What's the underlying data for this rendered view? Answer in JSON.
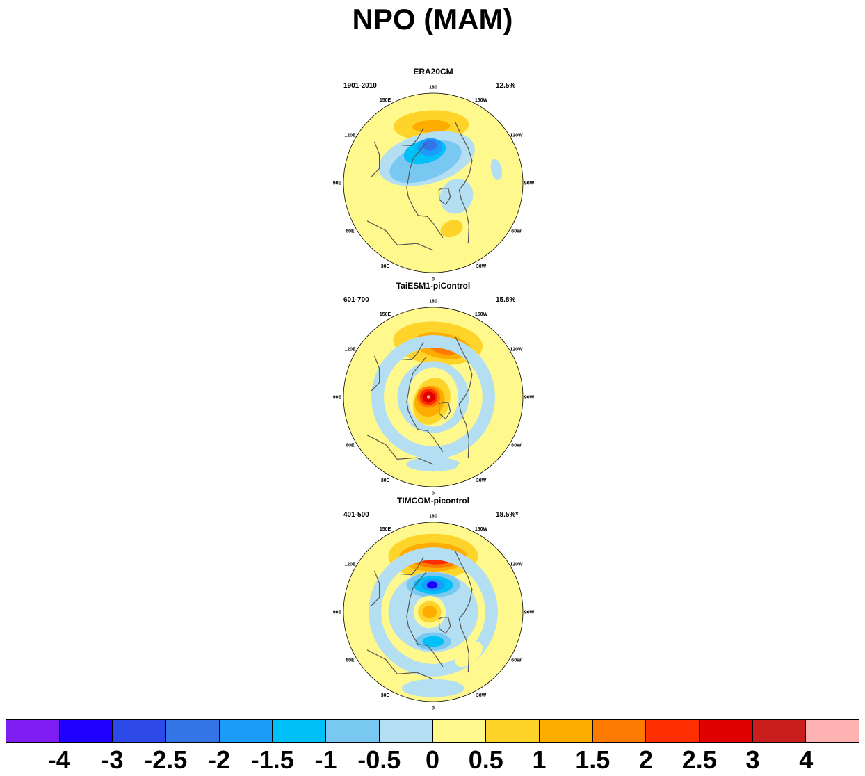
{
  "title": "NPO (MAM)",
  "colors": {
    "c_n4": "#7e1cf2",
    "c_n3": "#1f00ff",
    "c_n25": "#2d4ae8",
    "c_n2": "#3374e6",
    "c_n15": "#1b9bfa",
    "c_n1": "#00c0f8",
    "c_n05": "#78c8f2",
    "c_0": "#b4dff2",
    "c_05": "#fff88c",
    "c_1": "#ffd42a",
    "c_15": "#ffac00",
    "c_2": "#ff7a00",
    "c_25": "#ff2e00",
    "c_3": "#e00000",
    "c_4": "#c81e1e",
    "c_top": "#ffb2b2",
    "coast": "#555555"
  },
  "lon_labels": [
    "180",
    "150E",
    "120E",
    "90E",
    "60E",
    "30E",
    "0",
    "30W",
    "60W",
    "90W",
    "120W",
    "150W"
  ],
  "panels": [
    {
      "title": "ERA20CM",
      "period": "1901-2010",
      "percent": "12.5%",
      "pattern": [
        {
          "shape": "ellipse",
          "lon": 178,
          "r": 0.64,
          "rx": 0.42,
          "ry": 0.17,
          "level": "c_1"
        },
        {
          "shape": "ellipse",
          "lon": 178,
          "r": 0.63,
          "rx": 0.21,
          "ry": 0.07,
          "level": "c_15"
        },
        {
          "shape": "ellipse",
          "lon": 165,
          "r": 0.28,
          "rx": 0.55,
          "ry": 0.28,
          "level": "c_0"
        },
        {
          "shape": "ellipse",
          "lon": 160,
          "r": 0.25,
          "rx": 0.42,
          "ry": 0.2,
          "level": "c_n05"
        },
        {
          "shape": "ellipse",
          "lon": 165,
          "r": 0.36,
          "rx": 0.24,
          "ry": 0.13,
          "level": "c_n1"
        },
        {
          "shape": "ellipse",
          "lon": 175,
          "r": 0.4,
          "rx": 0.14,
          "ry": 0.1,
          "level": "c_n15"
        },
        {
          "shape": "ellipse",
          "lon": 175,
          "r": 0.42,
          "rx": 0.08,
          "ry": 0.06,
          "level": "c_n2"
        },
        {
          "shape": "ellipse",
          "lon": 300,
          "r": 0.3,
          "rx": 0.2,
          "ry": 0.18,
          "level": "c_0"
        },
        {
          "shape": "ellipse",
          "lon": 338,
          "r": 0.55,
          "rx": 0.13,
          "ry": 0.09,
          "level": "c_1"
        },
        {
          "shape": "ellipse",
          "lon": 258,
          "r": 0.72,
          "rx": 0.12,
          "ry": 0.06,
          "level": "c_0"
        }
      ]
    },
    {
      "title": "TaiESM1-piControl",
      "period": "601-700",
      "percent": "15.8%",
      "pattern": [
        {
          "shape": "ellipse",
          "lon": 185,
          "r": 0.6,
          "rx": 0.5,
          "ry": 0.24,
          "level": "c_1"
        },
        {
          "shape": "ellipse",
          "lon": 190,
          "r": 0.58,
          "rx": 0.32,
          "ry": 0.14,
          "level": "c_15"
        },
        {
          "shape": "ellipse",
          "lon": 192,
          "r": 0.57,
          "rx": 0.18,
          "ry": 0.08,
          "level": "c_2"
        },
        {
          "shape": "ring",
          "lon": 0,
          "r": 0,
          "rx": 0.62,
          "ry": 0.62,
          "level": "c_0"
        },
        {
          "shape": "ellipse",
          "lon": 0,
          "r": 0,
          "rx": 0.4,
          "ry": 0.4,
          "level": "c_0"
        },
        {
          "shape": "ellipse",
          "lon": 0,
          "r": 0,
          "rx": 0.28,
          "ry": 0.33,
          "level": "c_05"
        },
        {
          "shape": "ellipse",
          "lon": 20,
          "r": 0.05,
          "rx": 0.2,
          "ry": 0.27,
          "level": "c_1"
        },
        {
          "shape": "ellipse",
          "lon": 40,
          "r": 0.06,
          "rx": 0.16,
          "ry": 0.18,
          "level": "c_15"
        },
        {
          "shape": "ellipse",
          "lon": 90,
          "r": 0.05,
          "rx": 0.12,
          "ry": 0.13,
          "level": "c_2"
        },
        {
          "shape": "ellipse",
          "lon": 90,
          "r": 0.05,
          "rx": 0.09,
          "ry": 0.1,
          "level": "c_25"
        },
        {
          "shape": "ellipse",
          "lon": 90,
          "r": 0.05,
          "rx": 0.06,
          "ry": 0.07,
          "level": "c_3"
        },
        {
          "shape": "ellipse",
          "lon": 90,
          "r": 0.05,
          "rx": 0.02,
          "ry": 0.02,
          "level": "c_top"
        },
        {
          "shape": "ellipse",
          "lon": 0,
          "r": 0.75,
          "rx": 0.3,
          "ry": 0.08,
          "level": "c_0"
        },
        {
          "shape": "ellipse",
          "lon": 330,
          "r": 0.85,
          "rx": 0.22,
          "ry": 0.07,
          "level": "c_05"
        }
      ]
    },
    {
      "title": "TIMCOM-picontrol",
      "period": "401-500",
      "percent": "18.5%*",
      "pattern": [
        {
          "shape": "ellipse",
          "lon": 180,
          "r": 0.62,
          "rx": 0.5,
          "ry": 0.25,
          "level": "c_1"
        },
        {
          "shape": "ellipse",
          "lon": 180,
          "r": 0.61,
          "rx": 0.38,
          "ry": 0.16,
          "level": "c_15"
        },
        {
          "shape": "ellipse",
          "lon": 182,
          "r": 0.6,
          "rx": 0.28,
          "ry": 0.11,
          "level": "c_2"
        },
        {
          "shape": "ellipse",
          "lon": 182,
          "r": 0.6,
          "rx": 0.2,
          "ry": 0.07,
          "level": "c_25"
        },
        {
          "shape": "ring",
          "lon": 0,
          "r": 0,
          "rx": 0.65,
          "ry": 0.63,
          "level": "c_0"
        },
        {
          "shape": "ellipse",
          "lon": 0,
          "r": 0,
          "rx": 0.5,
          "ry": 0.45,
          "level": "c_0"
        },
        {
          "shape": "ellipse",
          "lon": 180,
          "r": 0.3,
          "rx": 0.3,
          "ry": 0.14,
          "level": "c_n05"
        },
        {
          "shape": "ellipse",
          "lon": 180,
          "r": 0.3,
          "rx": 0.22,
          "ry": 0.1,
          "level": "c_n1"
        },
        {
          "shape": "ellipse",
          "lon": 180,
          "r": 0.3,
          "rx": 0.13,
          "ry": 0.07,
          "level": "c_n15"
        },
        {
          "shape": "ellipse",
          "lon": 178,
          "r": 0.3,
          "rx": 0.06,
          "ry": 0.04,
          "level": "c_n3"
        },
        {
          "shape": "ellipse",
          "lon": 90,
          "r": 0.04,
          "rx": 0.18,
          "ry": 0.18,
          "level": "c_05"
        },
        {
          "shape": "ellipse",
          "lon": 90,
          "r": 0.04,
          "rx": 0.12,
          "ry": 0.13,
          "level": "c_1"
        },
        {
          "shape": "ellipse",
          "lon": 90,
          "r": 0.04,
          "rx": 0.07,
          "ry": 0.08,
          "level": "c_15"
        },
        {
          "shape": "ellipse",
          "lon": 0,
          "r": 0.33,
          "rx": 0.2,
          "ry": 0.1,
          "level": "c_n05"
        },
        {
          "shape": "ellipse",
          "lon": 0,
          "r": 0.33,
          "rx": 0.12,
          "ry": 0.06,
          "level": "c_n1"
        },
        {
          "shape": "ellipse",
          "lon": 320,
          "r": 0.62,
          "rx": 0.18,
          "ry": 0.1,
          "level": "c_05"
        },
        {
          "shape": "ellipse",
          "lon": 0,
          "r": 0.85,
          "rx": 0.35,
          "ry": 0.1,
          "level": "c_0"
        }
      ]
    }
  ],
  "colorbar": {
    "fill_keys": [
      "c_n4",
      "c_n3",
      "c_n25",
      "c_n2",
      "c_n15",
      "c_n1",
      "c_n05",
      "c_0",
      "c_05",
      "c_1",
      "c_15",
      "c_2",
      "c_25",
      "c_3",
      "c_4",
      "c_top"
    ],
    "tick_labels": [
      "-4",
      "-3",
      "-2.5",
      "-2",
      "-1.5",
      "-1",
      "-0.5",
      "0",
      "0.5",
      "1",
      "1.5",
      "2",
      "2.5",
      "3",
      "4"
    ]
  }
}
